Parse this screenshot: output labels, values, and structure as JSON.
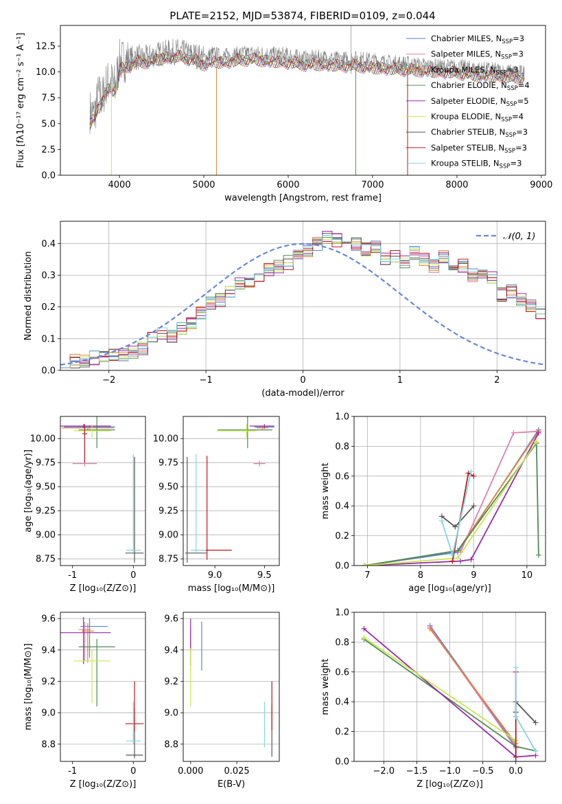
{
  "figure": {
    "title": "PLATE=2152, MJD=53874, FIBERID=0109, z=0.044"
  },
  "colors": {
    "Chabrier MILES": "#5b7fd6",
    "Salpeter MILES": "#e07fb0",
    "Kroupa MILES": "#e8823a",
    "Chabrier ELODIE": "#4f8a55",
    "Salpeter ELODIE": "#9a28a8",
    "Kroupa ELODIE": "#c8e84a",
    "Chabrier STELIB": "#555555",
    "Salpeter STELIB": "#c0141c",
    "Kroupa STELIB": "#7fd8e0",
    "data": "#808080",
    "normal": "#6a86d8"
  },
  "chart_data": [
    {
      "id": "spectrum",
      "type": "line",
      "title": "PLATE=2152, MJD=53874, FIBERID=0109, z=0.044",
      "xlabel": "wavelength [Angstrom, rest frame]",
      "ylabel": "Flux [fλ10⁻¹⁷ erg cm⁻² s⁻¹ A⁻¹]",
      "xlim": [
        3300,
        9050
      ],
      "ylim": [
        0,
        14.5
      ],
      "xticks": [
        4000,
        5000,
        6000,
        7000,
        8000,
        9000
      ],
      "yticks": [
        0.0,
        2.5,
        5.0,
        7.5,
        10.0,
        12.5
      ],
      "legend_position": "top-right",
      "legend": [
        "Chabrier MILES, N_SSP=3",
        "Salpeter MILES, N_SSP=3",
        "Kroupa MILES, N_SSP=3",
        "Chabrier ELODIE, N_SSP=4",
        "Salpeter ELODIE, N_SSP=5",
        "Kroupa ELODIE, N_SSP=4",
        "Chabrier STELIB, N_SSP=3",
        "Salpeter STELIB, N_SSP=3",
        "Kroupa STELIB, N_SSP=3"
      ],
      "data_series": {
        "x": [
          3650,
          3700,
          3750,
          3800,
          3850,
          3900,
          3950,
          4000,
          4100,
          4200,
          4300,
          4400,
          4500,
          4600,
          4700,
          4800,
          4900,
          5000,
          5100,
          5200,
          5300,
          5400,
          5500,
          5600,
          5800,
          6000,
          6200,
          6400,
          6600,
          6800,
          7000,
          7200,
          7400,
          7600,
          7800,
          8000,
          8200,
          8400,
          8600,
          8800
        ],
        "y": [
          6.2,
          5.8,
          7.8,
          7.5,
          9.0,
          9.0,
          8.6,
          11.0,
          11.2,
          11.4,
          11.3,
          11.6,
          11.8,
          11.9,
          12.0,
          11.7,
          11.6,
          11.3,
          11.8,
          11.5,
          11.6,
          11.7,
          11.8,
          11.8,
          11.7,
          11.6,
          11.3,
          11.4,
          11.2,
          11.3,
          11.1,
          10.9,
          10.8,
          10.6,
          10.5,
          10.5,
          10.3,
          10.2,
          10.0,
          9.9
        ]
      },
      "model_series": {
        "x": [
          3650,
          3700,
          3750,
          3800,
          3850,
          3900,
          3950,
          4000,
          4100,
          4200,
          4300,
          4400,
          4500,
          4600,
          4700,
          4800,
          4900,
          5000,
          5100,
          5200,
          5300,
          5400,
          5500,
          5600,
          5800,
          6000,
          6200,
          6400,
          6600,
          6800,
          7000,
          7200,
          7400,
          7600,
          7800,
          8000,
          8200,
          8400,
          8600,
          8800
        ],
        "y": [
          5.0,
          5.5,
          6.4,
          7.2,
          8.2,
          8.4,
          8.0,
          10.2,
          10.5,
          11.0,
          10.9,
          11.1,
          11.3,
          11.4,
          11.5,
          11.3,
          11.1,
          10.7,
          11.0,
          10.9,
          11.0,
          11.1,
          11.2,
          11.2,
          11.0,
          10.9,
          10.7,
          10.7,
          10.6,
          10.6,
          10.4,
          10.3,
          10.2,
          10.1,
          10.0,
          9.9,
          9.7,
          9.6,
          9.5,
          9.4
        ]
      }
    },
    {
      "id": "residual-histogram",
      "type": "line",
      "xlabel": "(data-model)/error",
      "ylabel": "Normed distribution",
      "xlim": [
        -2.5,
        2.5
      ],
      "ylim": [
        0,
        0.47
      ],
      "xticks": [
        -2,
        -1,
        0,
        1,
        2
      ],
      "yticks": [
        0.0,
        0.1,
        0.2,
        0.3,
        0.4
      ],
      "grid": true,
      "legend_position": "top-right",
      "legend": [
        "𝒩(0, 1)"
      ],
      "bin_edges_start": -2.5,
      "bin_width": 0.1,
      "histogram_values": [
        0.03,
        0.03,
        0.03,
        0.04,
        0.04,
        0.05,
        0.05,
        0.06,
        0.07,
        0.1,
        0.12,
        0.11,
        0.13,
        0.15,
        0.18,
        0.21,
        0.22,
        0.25,
        0.27,
        0.28,
        0.3,
        0.32,
        0.33,
        0.34,
        0.36,
        0.38,
        0.4,
        0.42,
        0.41,
        0.39,
        0.4,
        0.38,
        0.39,
        0.35,
        0.36,
        0.34,
        0.37,
        0.35,
        0.33,
        0.36,
        0.32,
        0.33,
        0.3,
        0.3,
        0.29,
        0.24,
        0.25,
        0.22,
        0.2,
        0.18
      ]
    },
    {
      "id": "age-vs-metallicity",
      "type": "scatter",
      "xlabel": "Z [log₁₀(Z/Z⊙)]",
      "ylabel": "age  [log₁₀(age/yr)]",
      "xlim": [
        -1.2,
        0.2
      ],
      "ylim": [
        8.68,
        10.23
      ],
      "xticks": [
        -1,
        0
      ],
      "yticks": [
        8.75,
        9.0,
        9.25,
        9.5,
        9.75,
        10.0
      ],
      "points": [
        {
          "series": "Chabrier MILES",
          "x": -0.72,
          "y": 10.12,
          "xerr": [
            0.42,
            0.42
          ],
          "yerr": [
            0.02,
            0.02
          ]
        },
        {
          "series": "Salpeter MILES",
          "x": -0.8,
          "y": 9.74,
          "xerr": [
            0.2,
            0.2
          ],
          "yerr": [
            0.03,
            0.03
          ]
        },
        {
          "series": "Kroupa MILES",
          "x": -0.75,
          "y": 10.11,
          "xerr": [
            0.43,
            0.43
          ],
          "yerr": [
            0.02,
            0.02
          ]
        },
        {
          "series": "Chabrier ELODIE",
          "x": -0.6,
          "y": 10.09,
          "xerr": [
            0.3,
            0.3
          ],
          "yerr": [
            0.19,
            0.19
          ]
        },
        {
          "series": "Salpeter ELODIE",
          "x": -0.82,
          "y": 10.13,
          "xerr": [
            0.45,
            0.45
          ],
          "yerr": [
            0.02,
            0.02
          ]
        },
        {
          "series": "Kroupa ELODIE",
          "x": -0.68,
          "y": 10.08,
          "xerr": [
            0.3,
            0.3
          ],
          "yerr": [
            0.07,
            0.07
          ]
        },
        {
          "series": "Chabrier STELIB",
          "x": 0.02,
          "y": 8.81,
          "xerr": [
            0.15,
            0.15
          ],
          "yerr": [
            0.1,
            1.0
          ]
        },
        {
          "series": "Salpeter STELIB",
          "x": -0.8,
          "y": 10.05,
          "xerr": [
            0.04,
            0.04
          ],
          "yerr": [
            0.3,
            0.1
          ]
        },
        {
          "series": "Kroupa STELIB",
          "x": 0.0,
          "y": 8.84,
          "xerr": [
            0.12,
            0.12
          ],
          "yerr": [
            0.02,
            1.0
          ]
        }
      ]
    },
    {
      "id": "age-vs-mass",
      "type": "scatter",
      "xlabel": "mass [log₁₀(M/M⊙)]",
      "ylabel": "",
      "xlim": [
        8.68,
        9.65
      ],
      "ylim": [
        8.68,
        10.23
      ],
      "xticks": [
        9.0,
        9.5
      ],
      "yticks": [
        8.75,
        9.0,
        9.25,
        9.5,
        9.75,
        10.0
      ],
      "points": [
        {
          "series": "Chabrier MILES",
          "x": 9.5,
          "y": 10.12,
          "xerr": [
            0.1,
            0.1
          ],
          "yerr": [
            0.02,
            0.02
          ]
        },
        {
          "series": "Salpeter MILES",
          "x": 9.45,
          "y": 9.74,
          "xerr": [
            0.06,
            0.06
          ],
          "yerr": [
            0.03,
            0.03
          ]
        },
        {
          "series": "Kroupa MILES",
          "x": 9.48,
          "y": 10.11,
          "xerr": [
            0.06,
            0.06
          ],
          "yerr": [
            0.02,
            0.02
          ]
        },
        {
          "series": "Chabrier ELODIE",
          "x": 9.33,
          "y": 10.09,
          "xerr": [
            0.3,
            0.25
          ],
          "yerr": [
            0.19,
            0.19
          ]
        },
        {
          "series": "Salpeter ELODIE",
          "x": 9.5,
          "y": 10.13,
          "xerr": [
            0.15,
            0.1
          ],
          "yerr": [
            0.02,
            0.02
          ]
        },
        {
          "series": "Kroupa ELODIE",
          "x": 9.32,
          "y": 10.08,
          "xerr": [
            0.3,
            0.1
          ],
          "yerr": [
            0.07,
            0.07
          ]
        },
        {
          "series": "Chabrier STELIB",
          "x": 8.72,
          "y": 8.81,
          "xerr": [
            0.02,
            0.2
          ],
          "yerr": [
            0.1,
            1.0
          ]
        },
        {
          "series": "Salpeter STELIB",
          "x": 8.92,
          "y": 8.84,
          "xerr": [
            0.05,
            0.25
          ],
          "yerr": [
            0.1,
            0.98
          ]
        },
        {
          "series": "Kroupa STELIB",
          "x": 8.81,
          "y": 8.84,
          "xerr": [
            0.05,
            0.1
          ],
          "yerr": [
            0.02,
            1.0
          ]
        }
      ]
    },
    {
      "id": "mass-weight-vs-age",
      "type": "line",
      "xlabel": "age  [log₁₀(age/yr)]",
      "ylabel": "mass weight",
      "xlim": [
        6.75,
        10.35
      ],
      "ylim": [
        0,
        1
      ],
      "xticks": [
        7,
        8,
        9,
        10
      ],
      "yticks": [
        0.0,
        0.2,
        0.4,
        0.6,
        0.8,
        1.0
      ],
      "grid": true,
      "series": [
        {
          "name": "Chabrier MILES",
          "x": [
            6.95,
            8.7,
            10.22
          ],
          "y": [
            0.0,
            0.09,
            0.91
          ]
        },
        {
          "name": "Salpeter MILES",
          "x": [
            8.75,
            9.75,
            10.22
          ],
          "y": [
            0.09,
            0.89,
            0.9
          ]
        },
        {
          "name": "Kroupa MILES",
          "x": [
            6.95,
            8.7,
            10.22
          ],
          "y": [
            0.0,
            0.1,
            0.9
          ]
        },
        {
          "name": "Chabrier ELODIE",
          "x": [
            6.95,
            8.7,
            10.18,
            10.22
          ],
          "y": [
            0.0,
            0.1,
            0.82,
            0.07
          ]
        },
        {
          "name": "Salpeter ELODIE",
          "x": [
            6.95,
            8.75,
            8.95,
            10.22
          ],
          "y": [
            0.0,
            0.03,
            0.04,
            0.89
          ]
        },
        {
          "name": "Kroupa ELODIE",
          "x": [
            6.95,
            8.7,
            10.18
          ],
          "y": [
            0.0,
            0.05,
            0.83
          ]
        },
        {
          "name": "Chabrier STELIB",
          "x": [
            8.4,
            8.65,
            9.0
          ],
          "y": [
            0.33,
            0.26,
            0.4
          ]
        },
        {
          "name": "Salpeter STELIB",
          "x": [
            8.6,
            8.9,
            9.0
          ],
          "y": [
            0.03,
            0.62,
            0.6
          ]
        },
        {
          "name": "Kroupa STELIB",
          "x": [
            8.4,
            8.6,
            8.95
          ],
          "y": [
            0.3,
            0.07,
            0.63
          ]
        }
      ]
    },
    {
      "id": "mass-vs-metallicity",
      "type": "scatter",
      "xlabel": "Z [log₁₀(Z/Z⊙)]",
      "ylabel": "mass [log₁₀(M/M⊙)]",
      "xlim": [
        -1.2,
        0.2
      ],
      "ylim": [
        8.69,
        9.64
      ],
      "xticks": [
        -1,
        0
      ],
      "yticks": [
        8.8,
        9.0,
        9.2,
        9.4,
        9.6
      ],
      "points": [
        {
          "series": "Chabrier MILES",
          "x": -0.72,
          "y": 9.55,
          "xerr": [
            0.15,
            0.3
          ],
          "yerr": [
            0.2,
            0.05
          ]
        },
        {
          "series": "Salpeter MILES",
          "x": -0.8,
          "y": 9.53,
          "xerr": [
            0.1,
            0.1
          ],
          "yerr": [
            0.2,
            0.05
          ]
        },
        {
          "series": "Kroupa MILES",
          "x": -0.75,
          "y": 9.52,
          "xerr": [
            0.1,
            0.1
          ],
          "yerr": [
            0.2,
            0.05
          ]
        },
        {
          "series": "Chabrier ELODIE",
          "x": -0.6,
          "y": 9.42,
          "xerr": [
            0.3,
            0.3
          ],
          "yerr": [
            0.38,
            0.05
          ]
        },
        {
          "series": "Salpeter ELODIE",
          "x": -0.82,
          "y": 9.51,
          "xerr": [
            0.45,
            0.45
          ],
          "yerr": [
            0.2,
            0.1
          ]
        },
        {
          "series": "Kroupa ELODIE",
          "x": -0.68,
          "y": 9.33,
          "xerr": [
            0.3,
            0.3
          ],
          "yerr": [
            0.27,
            0.07
          ]
        },
        {
          "series": "Chabrier STELIB",
          "x": 0.02,
          "y": 8.73,
          "xerr": [
            0.14,
            0.14
          ],
          "yerr": [
            0.02,
            0.3
          ]
        },
        {
          "series": "Salpeter STELIB",
          "x": 0.02,
          "y": 8.93,
          "xerr": [
            0.15,
            0.15
          ],
          "yerr": [
            0.05,
            0.27
          ]
        },
        {
          "series": "Kroupa STELIB",
          "x": 0.0,
          "y": 8.82,
          "xerr": [
            0.12,
            0.12
          ],
          "yerr": [
            0.02,
            0.25
          ]
        }
      ]
    },
    {
      "id": "mass-vs-extinction",
      "type": "scatter",
      "xlabel": "E(B-V)",
      "ylabel": "",
      "xlim": [
        -0.004,
        0.048
      ],
      "ylim": [
        8.69,
        9.64
      ],
      "xticks": [
        0.0,
        0.025
      ],
      "yticks": [
        8.8,
        9.0,
        9.2,
        9.4,
        9.6
      ],
      "points": [
        {
          "series": "Chabrier MILES",
          "x": 0.006,
          "y": 9.42,
          "yerr": [
            0.15,
            0.16
          ]
        },
        {
          "series": "Salpeter MILES",
          "x": 0.0,
          "y": 9.5,
          "yerr": [
            0.1,
            0.05
          ]
        },
        {
          "series": "Kroupa MILES",
          "x": 0.0,
          "y": 9.48,
          "yerr": [
            0.08,
            0.05
          ]
        },
        {
          "series": "Chabrier ELODIE",
          "x": 0.0,
          "y": 9.4,
          "yerr": [
            0.1,
            0.05
          ]
        },
        {
          "series": "Salpeter ELODIE",
          "x": 0.0,
          "y": 9.49,
          "yerr": [
            0.09,
            0.11
          ]
        },
        {
          "series": "Kroupa ELODIE",
          "x": 0.0,
          "y": 9.23,
          "yerr": [
            0.19,
            0.18
          ]
        },
        {
          "series": "Chabrier STELIB",
          "x": 0.044,
          "y": 8.97,
          "yerr": [
            0.25,
            0.08
          ]
        },
        {
          "series": "Salpeter STELIB",
          "x": 0.044,
          "y": 9.04,
          "yerr": [
            0.15,
            0.16
          ]
        },
        {
          "series": "Kroupa STELIB",
          "x": 0.04,
          "y": 8.93,
          "yerr": [
            0.15,
            0.14
          ]
        }
      ]
    },
    {
      "id": "mass-weight-vs-metallicity",
      "type": "line",
      "xlabel": "Z [log₁₀(Z/Z⊙)]",
      "ylabel": "mass weight",
      "xlim": [
        -2.45,
        0.45
      ],
      "ylim": [
        0,
        1
      ],
      "xticks": [
        -2.0,
        -1.5,
        -1.0,
        -0.5,
        0.0
      ],
      "yticks": [
        0.0,
        0.2,
        0.4,
        0.6,
        0.8,
        1.0
      ],
      "grid": true,
      "series": [
        {
          "name": "Chabrier MILES",
          "x": [
            -1.3,
            0.0,
            0.0
          ],
          "y": [
            0.91,
            0.1,
            0.0
          ]
        },
        {
          "name": "Salpeter MILES",
          "x": [
            -1.3,
            0.0
          ],
          "y": [
            0.9,
            0.09
          ]
        },
        {
          "name": "Kroupa MILES",
          "x": [
            -1.3,
            0.0
          ],
          "y": [
            0.89,
            0.12
          ]
        },
        {
          "name": "Chabrier ELODIE",
          "x": [
            -2.3,
            0.0,
            0.3
          ],
          "y": [
            0.82,
            0.1,
            0.07
          ]
        },
        {
          "name": "Salpeter ELODIE",
          "x": [
            -2.3,
            0.0,
            0.3
          ],
          "y": [
            0.89,
            0.03,
            0.04
          ]
        },
        {
          "name": "Kroupa ELODIE",
          "x": [
            -2.3,
            0.0
          ],
          "y": [
            0.83,
            0.14
          ]
        },
        {
          "name": "Chabrier STELIB",
          "x": [
            0.0,
            0.0,
            0.0,
            0.3
          ],
          "y": [
            0.33,
            0.3,
            0.4,
            0.26
          ]
        },
        {
          "name": "Salpeter STELIB",
          "x": [
            0.0,
            0.0
          ],
          "y": [
            0.6,
            0.03
          ]
        },
        {
          "name": "Kroupa STELIB",
          "x": [
            0.0,
            0.0,
            0.3
          ],
          "y": [
            0.63,
            0.3,
            0.07
          ]
        }
      ]
    }
  ]
}
